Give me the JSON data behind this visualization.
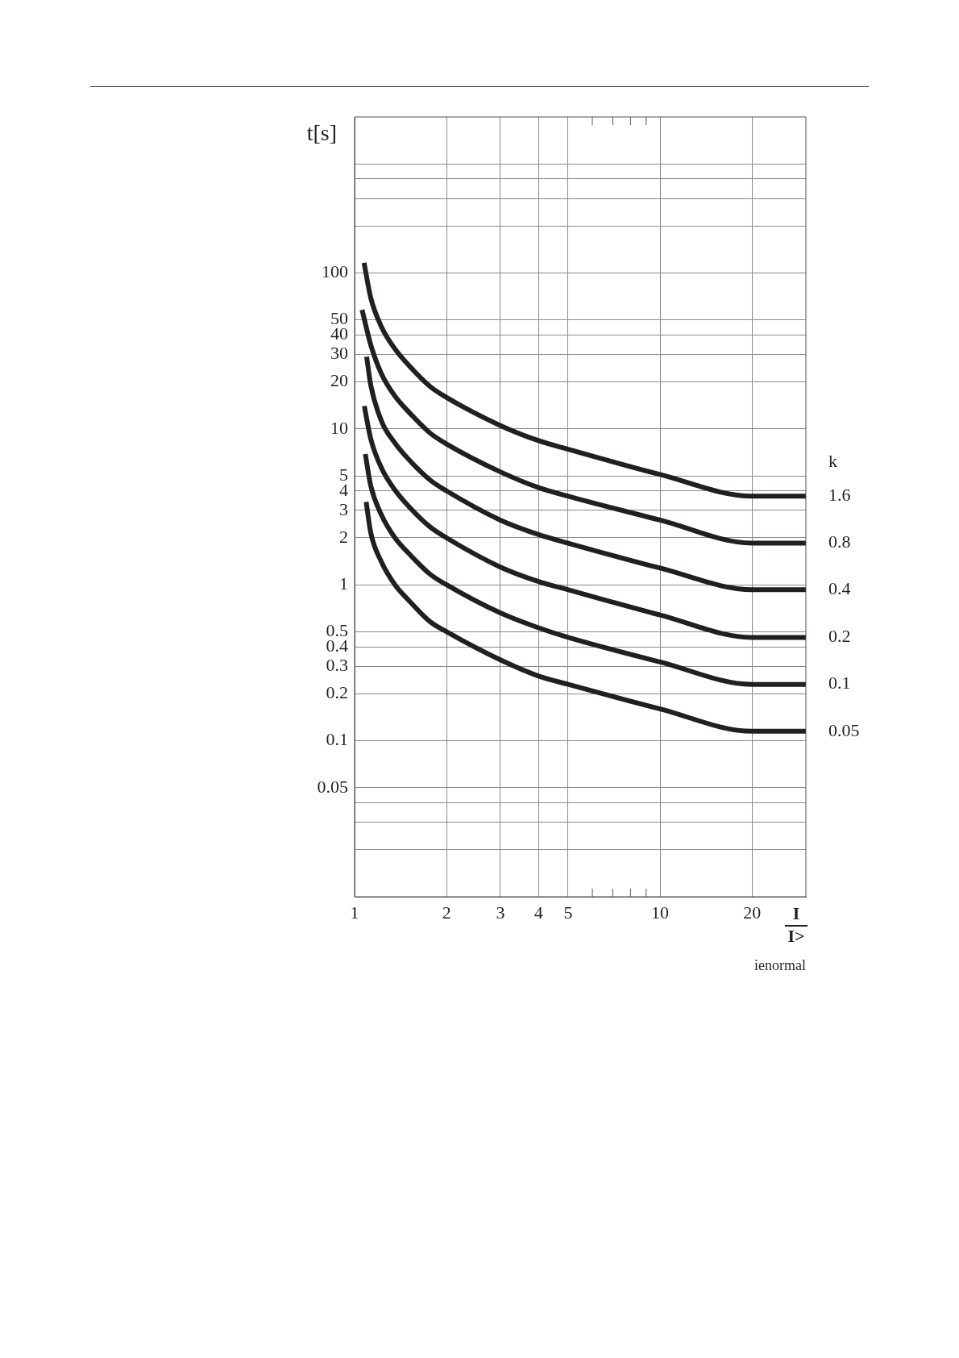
{
  "chart_data": {
    "type": "line",
    "xlabel": "I",
    "ylabel": "t[s]",
    "legend_title": "k",
    "log": "xy",
    "grid": true,
    "marker": "none",
    "line_style": "solid",
    "legend": false,
    "xlim": [
      1,
      30
    ],
    "xticks": [
      1,
      2,
      3,
      4,
      5,
      {
        "value": 6,
        "label": null
      },
      {
        "value": 7,
        "label": null
      },
      {
        "value": 8,
        "label": null
      },
      {
        "value": 9,
        "label": null
      },
      10,
      20
    ],
    "ylim": [
      0.01,
      1000
    ],
    "yticks": [
      {
        "value": 0.02,
        "label": null
      },
      {
        "value": 0.03,
        "label": null
      },
      {
        "value": 0.04,
        "label": null
      },
      0.05,
      0.1,
      0.2,
      0.3,
      0.4,
      0.5,
      1,
      2,
      3,
      4,
      5,
      10,
      20,
      30,
      40,
      50,
      100,
      {
        "value": 200,
        "label": null
      },
      {
        "value": 300,
        "label": null
      },
      {
        "value": 400,
        "label": null
      },
      {
        "value": 500,
        "label": null
      }
    ],
    "annotations": [
      "I>",
      "ienormal"
    ],
    "series": [
      {
        "name": "1.6",
        "color": "#231f20",
        "x": [
          1.074,
          1.13,
          1.225,
          1.356,
          1.5,
          1.766,
          2,
          3,
          4,
          5,
          10,
          20,
          30
        ],
        "values": [
          116,
          69,
          45,
          32.5,
          25.7,
          18.7,
          15.9,
          10.5,
          8.4,
          7.4,
          5.1,
          3.7,
          3.7
        ]
      },
      {
        "name": "0.8",
        "color": "#231f20",
        "x": [
          1.058,
          1.13,
          1.225,
          1.356,
          1.5,
          1.766,
          2,
          3,
          4,
          5,
          10,
          20,
          30
        ],
        "values": [
          58,
          34.5,
          22.5,
          16.2,
          12.9,
          9.4,
          8,
          5.3,
          4.2,
          3.7,
          2.6,
          1.85,
          1.85
        ]
      },
      {
        "name": "0.4",
        "color": "#231f20",
        "x": [
          1.095,
          1.13,
          1.225,
          1.356,
          1.5,
          1.766,
          2,
          3,
          4,
          5,
          10,
          20,
          30
        ],
        "values": [
          29,
          19,
          11.2,
          8.1,
          6.4,
          4.7,
          4,
          2.6,
          2.1,
          1.85,
          1.28,
          0.93,
          0.93
        ]
      },
      {
        "name": "0.2",
        "color": "#231f20",
        "x": [
          1.076,
          1.13,
          1.225,
          1.356,
          1.5,
          1.766,
          2,
          3,
          4,
          5,
          10,
          20,
          30
        ],
        "values": [
          14,
          8.6,
          5.6,
          4.05,
          3.2,
          2.35,
          2,
          1.3,
          1.05,
          0.93,
          0.64,
          0.46,
          0.46
        ]
      },
      {
        "name": "0.1",
        "color": "#231f20",
        "x": [
          1.084,
          1.13,
          1.225,
          1.356,
          1.5,
          1.766,
          2,
          3,
          4,
          5,
          10,
          20,
          30
        ],
        "values": [
          6.9,
          4.3,
          2.8,
          2,
          1.6,
          1.17,
          1,
          0.66,
          0.53,
          0.46,
          0.32,
          0.23,
          0.23
        ]
      },
      {
        "name": "0.05",
        "color": "#231f20",
        "x": [
          1.091,
          1.13,
          1.225,
          1.356,
          1.5,
          1.766,
          2,
          3,
          4,
          5,
          10,
          20,
          30
        ],
        "values": [
          3.4,
          2.15,
          1.4,
          1,
          0.8,
          0.58,
          0.5,
          0.33,
          0.26,
          0.23,
          0.16,
          0.115,
          0.115
        ]
      }
    ]
  }
}
